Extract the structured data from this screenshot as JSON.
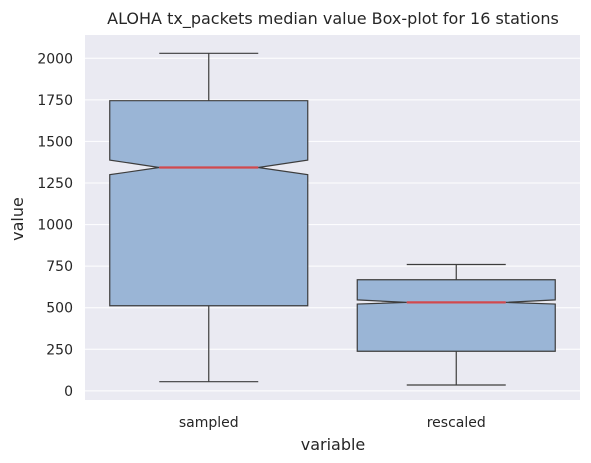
{
  "chart_data": {
    "type": "boxplot",
    "title": "ALOHA tx_packets median value Box-plot for 16 stations",
    "xlabel": "variable",
    "ylabel": "value",
    "categories": [
      "sampled",
      "rescaled"
    ],
    "ylim": [
      -55,
      2140
    ],
    "yticks": [
      0,
      250,
      500,
      750,
      1000,
      1250,
      1500,
      1750,
      2000
    ],
    "grid": true,
    "notched": true,
    "boxes": [
      {
        "name": "sampled",
        "whisker_low": 55,
        "q1": 512,
        "median": 1343,
        "q3": 1745,
        "whisker_high": 2030,
        "notch_low": 1300,
        "notch_high": 1388
      },
      {
        "name": "rescaled",
        "whisker_low": 35,
        "q1": 238,
        "median": 532,
        "q3": 668,
        "whisker_high": 760,
        "notch_low": 522,
        "notch_high": 547
      }
    ],
    "colors": {
      "background": "#eaeaf2",
      "grid": "#ffffff",
      "box_fill": "#9ab5d6",
      "box_edge": "#3d3d3d",
      "median": "#d1494e"
    }
  }
}
